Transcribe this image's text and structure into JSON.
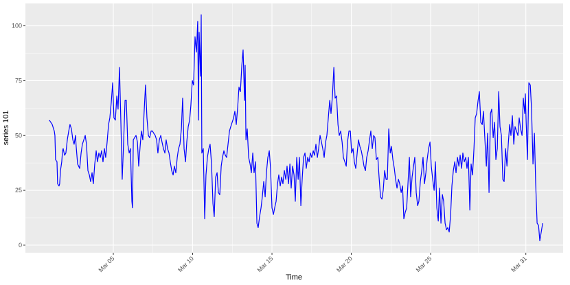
{
  "chart_data": {
    "type": "line",
    "x_label": "Time",
    "y_label": "series 101",
    "color": "#0000ff",
    "grid": true,
    "xlim": [
      -0.54,
      33.35
    ],
    "ylim": [
      -3.45,
      110.2
    ],
    "xticks": [
      {
        "value": 5,
        "label": "Mar 05"
      },
      {
        "value": 10,
        "label": "Mar 10"
      },
      {
        "value": 15,
        "label": "Mar 15"
      },
      {
        "value": 20,
        "label": "Mar 20"
      },
      {
        "value": 25,
        "label": "Mar 25"
      },
      {
        "value": 31,
        "label": "Mar 31"
      }
    ],
    "yticks": [
      0,
      25,
      50,
      75,
      100
    ],
    "x": [
      0.97,
      1.15,
      1.28,
      1.32,
      1.36,
      1.45,
      1.49,
      1.58,
      1.62,
      1.67,
      1.75,
      1.8,
      1.84,
      1.93,
      2.01,
      2.1,
      2.19,
      2.27,
      2.36,
      2.45,
      2.53,
      2.62,
      2.66,
      2.75,
      2.88,
      2.97,
      3.05,
      3.14,
      3.23,
      3.31,
      3.4,
      3.49,
      3.57,
      3.66,
      3.74,
      3.83,
      3.92,
      4.0,
      4.09,
      4.18,
      4.26,
      4.35,
      4.44,
      4.52,
      4.61,
      4.7,
      4.78,
      4.87,
      4.96,
      5.04,
      5.13,
      5.22,
      5.3,
      5.39,
      5.48,
      5.56,
      5.65,
      5.74,
      5.82,
      5.91,
      6.0,
      6.08,
      6.17,
      6.21,
      6.26,
      6.34,
      6.43,
      6.52,
      6.6,
      6.69,
      6.77,
      6.86,
      6.95,
      7.03,
      7.12,
      7.21,
      7.29,
      7.38,
      7.47,
      7.55,
      7.64,
      7.73,
      7.81,
      7.9,
      7.99,
      8.07,
      8.16,
      8.25,
      8.33,
      8.42,
      8.51,
      8.59,
      8.68,
      8.77,
      8.85,
      8.94,
      9.03,
      9.11,
      9.2,
      9.29,
      9.37,
      9.46,
      9.55,
      9.63,
      9.72,
      9.81,
      9.89,
      9.98,
      10.06,
      10.15,
      10.24,
      10.32,
      10.37,
      10.41,
      10.5,
      10.54,
      10.58,
      10.67,
      10.76,
      10.84,
      10.93,
      11.02,
      11.1,
      11.19,
      11.28,
      11.36,
      11.45,
      11.54,
      11.62,
      11.71,
      11.8,
      11.88,
      11.97,
      12.06,
      12.14,
      12.23,
      12.32,
      12.4,
      12.49,
      12.58,
      12.66,
      12.75,
      12.84,
      12.92,
      13.01,
      13.1,
      13.18,
      13.27,
      13.31,
      13.36,
      13.44,
      13.53,
      13.62,
      13.7,
      13.79,
      13.87,
      13.96,
      14.05,
      14.13,
      14.22,
      14.31,
      14.39,
      14.48,
      14.57,
      14.65,
      14.74,
      14.83,
      14.91,
      15.0,
      15.09,
      15.17,
      15.26,
      15.35,
      15.43,
      15.52,
      15.61,
      15.69,
      15.78,
      15.87,
      15.95,
      16.04,
      16.13,
      16.21,
      16.3,
      16.39,
      16.47,
      16.56,
      16.65,
      16.73,
      16.82,
      16.91,
      16.99,
      17.08,
      17.16,
      17.25,
      17.34,
      17.42,
      17.51,
      17.6,
      17.68,
      17.77,
      17.86,
      17.94,
      18.03,
      18.12,
      18.2,
      18.29,
      18.38,
      18.46,
      18.55,
      18.64,
      18.72,
      18.81,
      18.9,
      18.98,
      19.07,
      19.16,
      19.24,
      19.33,
      19.42,
      19.5,
      19.59,
      19.68,
      19.76,
      19.85,
      19.94,
      20.02,
      20.11,
      20.19,
      20.28,
      20.37,
      20.45,
      20.54,
      20.63,
      20.71,
      20.8,
      20.89,
      20.97,
      21.06,
      21.15,
      21.23,
      21.32,
      21.41,
      21.49,
      21.58,
      21.67,
      21.75,
      21.84,
      21.93,
      22.01,
      22.1,
      22.19,
      22.27,
      22.36,
      22.45,
      22.53,
      22.62,
      22.71,
      22.79,
      22.88,
      22.97,
      23.05,
      23.14,
      23.23,
      23.31,
      23.4,
      23.49,
      23.57,
      23.66,
      23.74,
      23.83,
      23.92,
      24.0,
      24.09,
      24.18,
      24.26,
      24.35,
      24.44,
      24.52,
      24.61,
      24.7,
      24.78,
      24.87,
      24.96,
      25.04,
      25.13,
      25.22,
      25.3,
      25.39,
      25.48,
      25.56,
      25.65,
      25.74,
      25.82,
      25.91,
      26.0,
      26.08,
      26.17,
      26.26,
      26.34,
      26.43,
      26.52,
      26.6,
      26.69,
      26.78,
      26.86,
      26.95,
      27.03,
      27.12,
      27.21,
      27.29,
      27.38,
      27.47,
      27.55,
      27.64,
      27.73,
      27.81,
      27.9,
      27.99,
      28.07,
      28.16,
      28.25,
      28.33,
      28.42,
      28.51,
      28.59,
      28.68,
      28.77,
      28.85,
      28.94,
      29.03,
      29.11,
      29.2,
      29.29,
      29.37,
      29.46,
      29.55,
      29.63,
      29.72,
      29.81,
      29.89,
      29.98,
      30.06,
      30.15,
      30.24,
      30.32,
      30.41,
      30.5,
      30.58,
      30.67,
      30.76,
      30.84,
      30.93,
      30.97,
      31.02,
      31.1,
      31.19,
      31.28,
      31.36,
      31.45,
      31.54,
      31.62,
      31.71,
      31.8,
      31.88,
      31.97,
      32.06
    ],
    "values": [
      57,
      55,
      52,
      50,
      39,
      38,
      28,
      27,
      28,
      34,
      38,
      43,
      44,
      41,
      42,
      48,
      52,
      55,
      53,
      48,
      46,
      50,
      45,
      37,
      35,
      42,
      46,
      48,
      50,
      46,
      34,
      32,
      29,
      33,
      28,
      37,
      43,
      38,
      42,
      40,
      43,
      38,
      44,
      40,
      47,
      55,
      58,
      65,
      74,
      58,
      57,
      68,
      62,
      81,
      55,
      30,
      47,
      66,
      66,
      46,
      42,
      44,
      20,
      17,
      48,
      49,
      50,
      47,
      36,
      45,
      52,
      48,
      62,
      73,
      58,
      50,
      49,
      52,
      52,
      51,
      50,
      48,
      42,
      48,
      50,
      47,
      44,
      42,
      48,
      44,
      42,
      38,
      34,
      32,
      36,
      33,
      40,
      44,
      46,
      53,
      67,
      44,
      38,
      47,
      54,
      57,
      64,
      75,
      73,
      95,
      88,
      102,
      57,
      97,
      77,
      105,
      42,
      44,
      12,
      32,
      40,
      44,
      46,
      37,
      19,
      13,
      31,
      33,
      24,
      23,
      36,
      40,
      43,
      41,
      40,
      46,
      52,
      54,
      56,
      58,
      61,
      55,
      63,
      72,
      70,
      82,
      89,
      66,
      82,
      48,
      53,
      40,
      37,
      33,
      42,
      33,
      38,
      10,
      8,
      13,
      17,
      22,
      29,
      22,
      33,
      40,
      43,
      35,
      17,
      14,
      17,
      20,
      28,
      32,
      27,
      31,
      28,
      34,
      30,
      36,
      28,
      37,
      26,
      36,
      32,
      20,
      40,
      30,
      40,
      18,
      31,
      40,
      42,
      35,
      40,
      38,
      42,
      40,
      43,
      41,
      46,
      40,
      44,
      50,
      47,
      44,
      40,
      47,
      50,
      58,
      66,
      60,
      68,
      81,
      67,
      68,
      55,
      50,
      52,
      47,
      40,
      38,
      36,
      47,
      52,
      52,
      42,
      44,
      38,
      35,
      42,
      48,
      45,
      43,
      40,
      36,
      34,
      40,
      43,
      48,
      52,
      44,
      50,
      49,
      39,
      40,
      31,
      22,
      21,
      25,
      34,
      30,
      30,
      53,
      42,
      45,
      39,
      35,
      30,
      26,
      30,
      28,
      24,
      27,
      12,
      15,
      17,
      28,
      40,
      22,
      31,
      36,
      40,
      24,
      18,
      20,
      29,
      34,
      40,
      28,
      33,
      39,
      44,
      47,
      36,
      30,
      25,
      38,
      17,
      11,
      26,
      10,
      23,
      20,
      10,
      7,
      8,
      6,
      14,
      27,
      34,
      38,
      33,
      40,
      36,
      41,
      35,
      42,
      38,
      40,
      35,
      40,
      16,
      37,
      32,
      44,
      58,
      60,
      66,
      70,
      56,
      55,
      61,
      48,
      36,
      51,
      24,
      60,
      62,
      49,
      56,
      39,
      44,
      70,
      54,
      50,
      30,
      29,
      44,
      36,
      46,
      55,
      50,
      59,
      46,
      54,
      52,
      50,
      58,
      53,
      50,
      67,
      60,
      69,
      56,
      39,
      74,
      73,
      62,
      37,
      51,
      28,
      10,
      9,
      2,
      6,
      10
    ]
  }
}
